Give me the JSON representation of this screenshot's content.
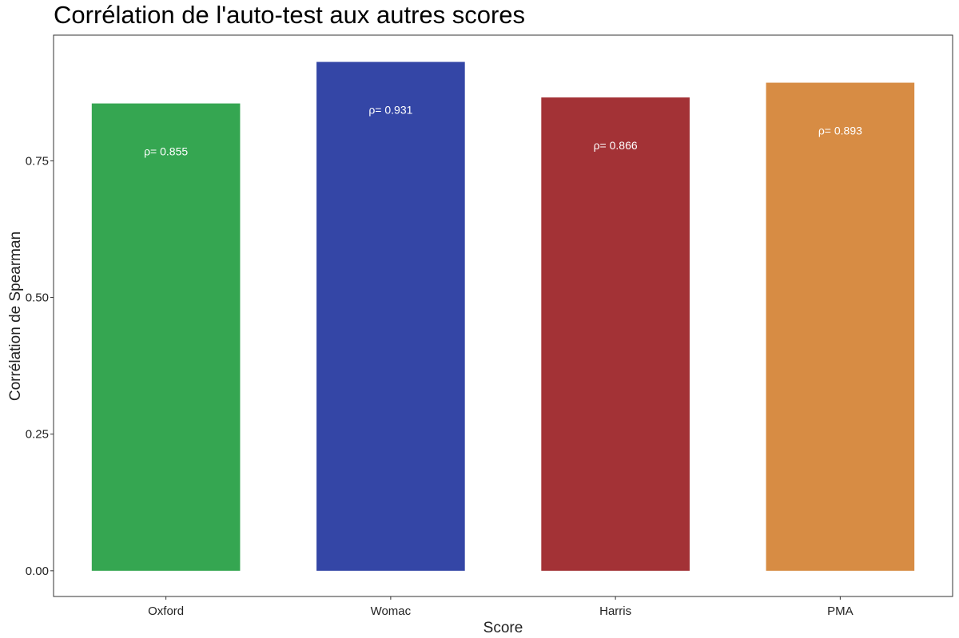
{
  "chart_data": {
    "type": "bar",
    "title": "Corrélation de l'auto-test aux autres scores",
    "xlabel": "Score",
    "ylabel": "Corrélation de Spearman",
    "categories": [
      "Oxford",
      "Womac",
      "Harris",
      "PMA"
    ],
    "values": [
      0.855,
      0.931,
      0.866,
      0.893
    ],
    "data_labels": [
      "ρ= 0.855",
      "ρ= 0.931",
      "ρ= 0.866",
      "ρ= 0.893"
    ],
    "colors": [
      "#35a651",
      "#3446a6",
      "#a33236",
      "#d78c44"
    ],
    "ylim": [
      -0.047,
      0.98
    ],
    "yticks": [
      0,
      0.25,
      0.5,
      0.75
    ],
    "ytick_labels": [
      "0.00",
      "0.25",
      "0.50",
      "0.75"
    ],
    "grid": false,
    "legend": "none"
  }
}
